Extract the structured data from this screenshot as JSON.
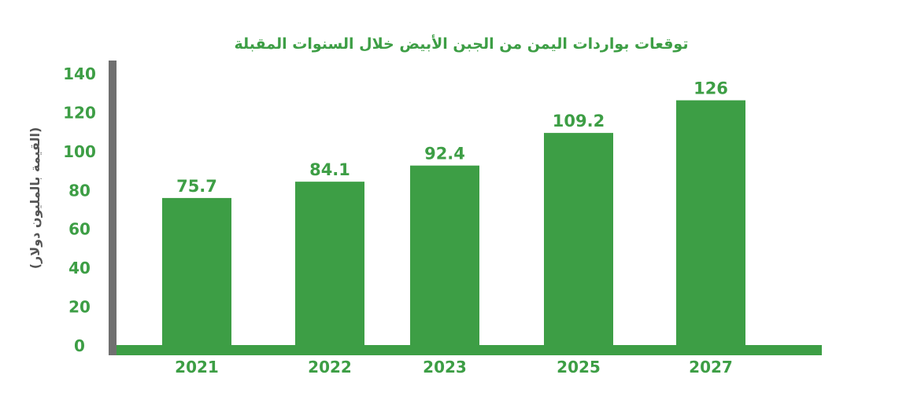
{
  "chart_data": {
    "type": "bar",
    "title": "توقعات بواردات اليمن من الجبن الأبيض خلال السنوات المقبلة",
    "xlabel": "",
    "ylabel": "(القيمة بالمليون دولار)",
    "categories": [
      "2021",
      "2022",
      "2023",
      "2025",
      "2027"
    ],
    "values": [
      75.7,
      84.1,
      92.4,
      109.2,
      126
    ],
    "value_labels": [
      "75.7",
      "84.1",
      "92.4",
      "109.2",
      "126"
    ],
    "ylim": [
      0,
      140
    ],
    "yticks": [
      0,
      20,
      40,
      60,
      80,
      100,
      120,
      140
    ],
    "grid": false,
    "legend": "none",
    "colors": {
      "bar": "#3d9e45",
      "baseline": "#3d9e45",
      "text": "#3d9e45",
      "y_axis": "#707070",
      "ylabel": "#555555"
    }
  }
}
